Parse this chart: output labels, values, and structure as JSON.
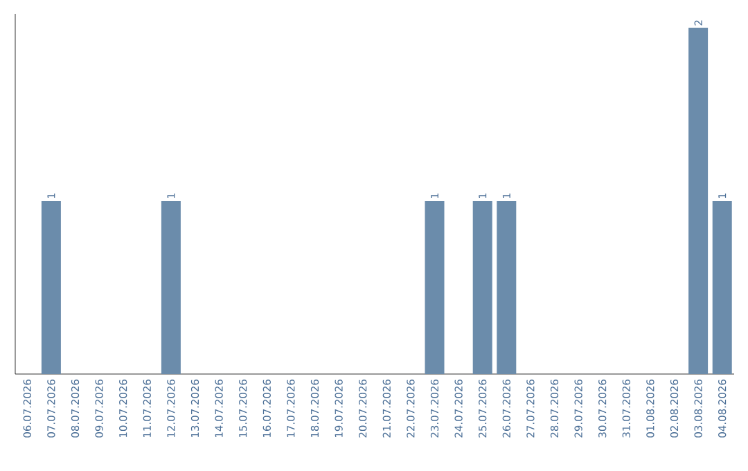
{
  "chart_data": {
    "type": "bar",
    "categories": [
      "06.07.2026",
      "07.07.2026",
      "08.07.2026",
      "09.07.2026",
      "10.07.2026",
      "11.07.2026",
      "12.07.2026",
      "13.07.2026",
      "14.07.2026",
      "15.07.2026",
      "16.07.2026",
      "17.07.2026",
      "18.07.2026",
      "19.07.2026",
      "20.07.2026",
      "21.07.2026",
      "22.07.2026",
      "23.07.2026",
      "24.07.2026",
      "25.07.2026",
      "26.07.2026",
      "27.07.2026",
      "28.07.2026",
      "29.07.2026",
      "30.07.2026",
      "31.07.2026",
      "01.08.2026",
      "02.08.2026",
      "03.08.2026",
      "04.08.2026"
    ],
    "values": [
      0,
      1,
      0,
      0,
      0,
      0,
      1,
      0,
      0,
      0,
      0,
      0,
      0,
      0,
      0,
      0,
      0,
      1,
      0,
      1,
      1,
      0,
      0,
      0,
      0,
      0,
      0,
      0,
      2,
      1
    ],
    "value_labels": [
      null,
      "1",
      null,
      null,
      null,
      null,
      "1",
      null,
      null,
      null,
      null,
      null,
      null,
      null,
      null,
      null,
      null,
      "1",
      null,
      "1",
      "1",
      null,
      null,
      null,
      null,
      null,
      null,
      null,
      "2",
      "1"
    ],
    "color": "#6b8cab",
    "ylim": [
      0,
      2.08
    ],
    "tick_labels": "x"
  }
}
